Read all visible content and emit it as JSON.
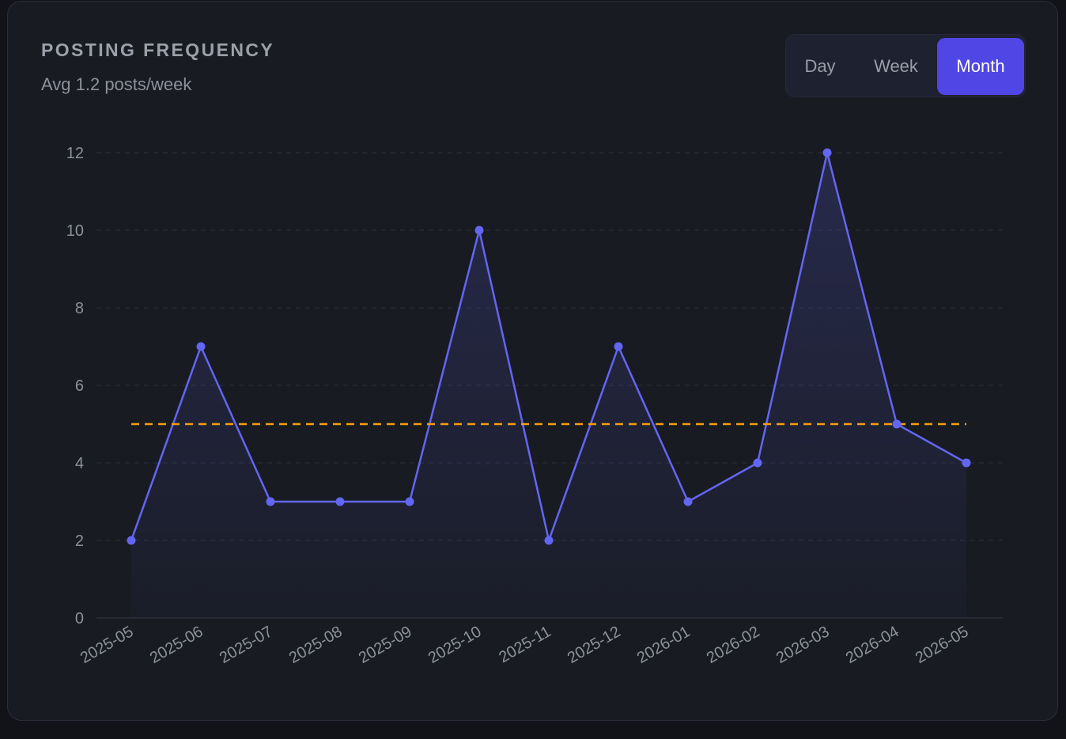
{
  "header": {
    "title": "POSTING FREQUENCY",
    "subtitle": "Avg 1.2 posts/week"
  },
  "range_toggle": {
    "options": [
      "Day",
      "Week",
      "Month"
    ],
    "selected": "Month"
  },
  "colors": {
    "line": "#6366f1",
    "average_line": "#f59e0b",
    "active_button": "#5046e5",
    "grid": "#2b2f3a",
    "axis_text": "#8d919c"
  },
  "chart_data": {
    "type": "line",
    "x": [
      "2025-05",
      "2025-06",
      "2025-07",
      "2025-08",
      "2025-09",
      "2025-10",
      "2025-11",
      "2025-12",
      "2026-01",
      "2026-02",
      "2026-03",
      "2026-04",
      "2026-05"
    ],
    "series": [
      {
        "values": [
          2,
          7,
          3,
          3,
          3,
          10,
          2,
          7,
          3,
          4,
          12,
          5,
          4
        ]
      }
    ],
    "reference_line": 5,
    "ylim": [
      0,
      12
    ],
    "yticks": [
      0,
      2,
      4,
      6,
      8,
      10,
      12
    ],
    "xlabel": "",
    "ylabel": "",
    "grid": true,
    "area_fill": true
  }
}
